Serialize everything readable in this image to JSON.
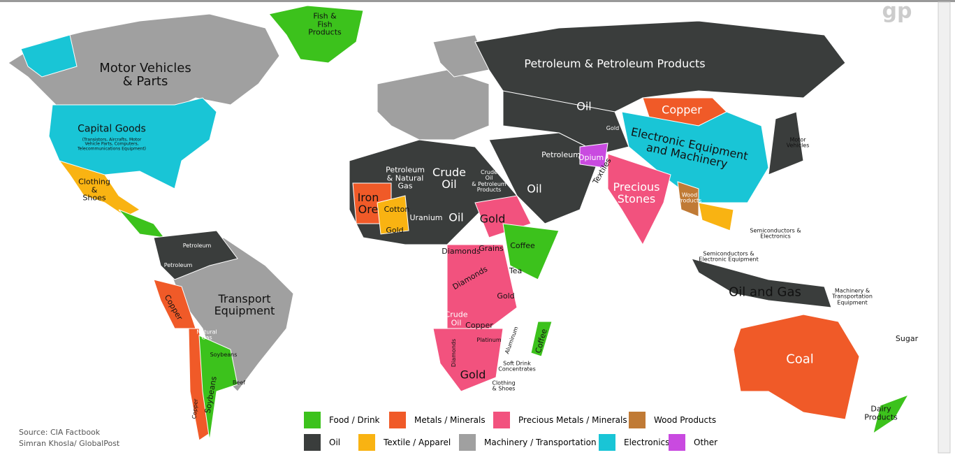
{
  "logo": "gp",
  "source": [
    "Source: CIA Factbook",
    "Simran Khosla/ GlobalPost"
  ],
  "legend": [
    {
      "label": "Food / Drink",
      "color": "#3cc21c"
    },
    {
      "label": "Metals / Minerals",
      "color": "#f05a28"
    },
    {
      "label": "Precious Metals / Minerals",
      "color": "#f2527e"
    },
    {
      "label": "Wood Products",
      "color": "#c07a35"
    },
    {
      "label": "Oil",
      "color": "#3a3d3c"
    },
    {
      "label": "Textile / Apparel",
      "color": "#f9b312"
    },
    {
      "label": "Machinery / Transportation",
      "color": "#a0a0a0"
    },
    {
      "label": "Electronics",
      "color": "#19c5d6"
    },
    {
      "label": "Other",
      "color": "#c94ae0"
    }
  ],
  "labels": [
    "Fish &\nFish\nProducts",
    "Motor Vehicles\n& Parts",
    "Capital Goods",
    "(Transistors, Aircrafts, Motor\nVehicle Parts, Computers,\nTelecommunications Equipment)",
    "Clothing\n&\nShoes",
    "Petroleum & Petroleum Products",
    "Oil",
    "Copper",
    "Electronic Equipment\nand Machinery",
    "Petroleum",
    "Oil",
    "Crude\nOil",
    "Petroleum\n& Natural\nGas",
    "Crude\nOil\n& Petroleum\nProducts",
    "Iron\nOre",
    "Cotton",
    "Uranium",
    "Oil",
    "Gold",
    "Gold",
    "Coffee",
    "Grains",
    "Tea",
    "Diamonds",
    "Diamonds",
    "Gold",
    "Crude\nOil",
    "Copper",
    "Diamonds",
    "Gold",
    "Platinum",
    "Aluminum",
    "Coffee",
    "Soft Drink\nConcentrates",
    "Clothing\n& Shoes",
    "Precious\nStones",
    "Textiles",
    "Opium",
    "Gold",
    "Wood\nProducts",
    "Oil and Gas",
    "Machinery &\nTransportation\nEquipment",
    "Semiconductors &\nElectronic Equipment",
    "Semiconductors &\nElectronics",
    "Motor\nVehicles",
    "Coal",
    "Sugar",
    "Dairy\nProducts",
    "Transport\nEquipment",
    "Copper",
    "Natural\nGas",
    "Soybeans",
    "Soybeans",
    "Beef",
    "Petroleum",
    "Petroleum",
    "Copper"
  ]
}
